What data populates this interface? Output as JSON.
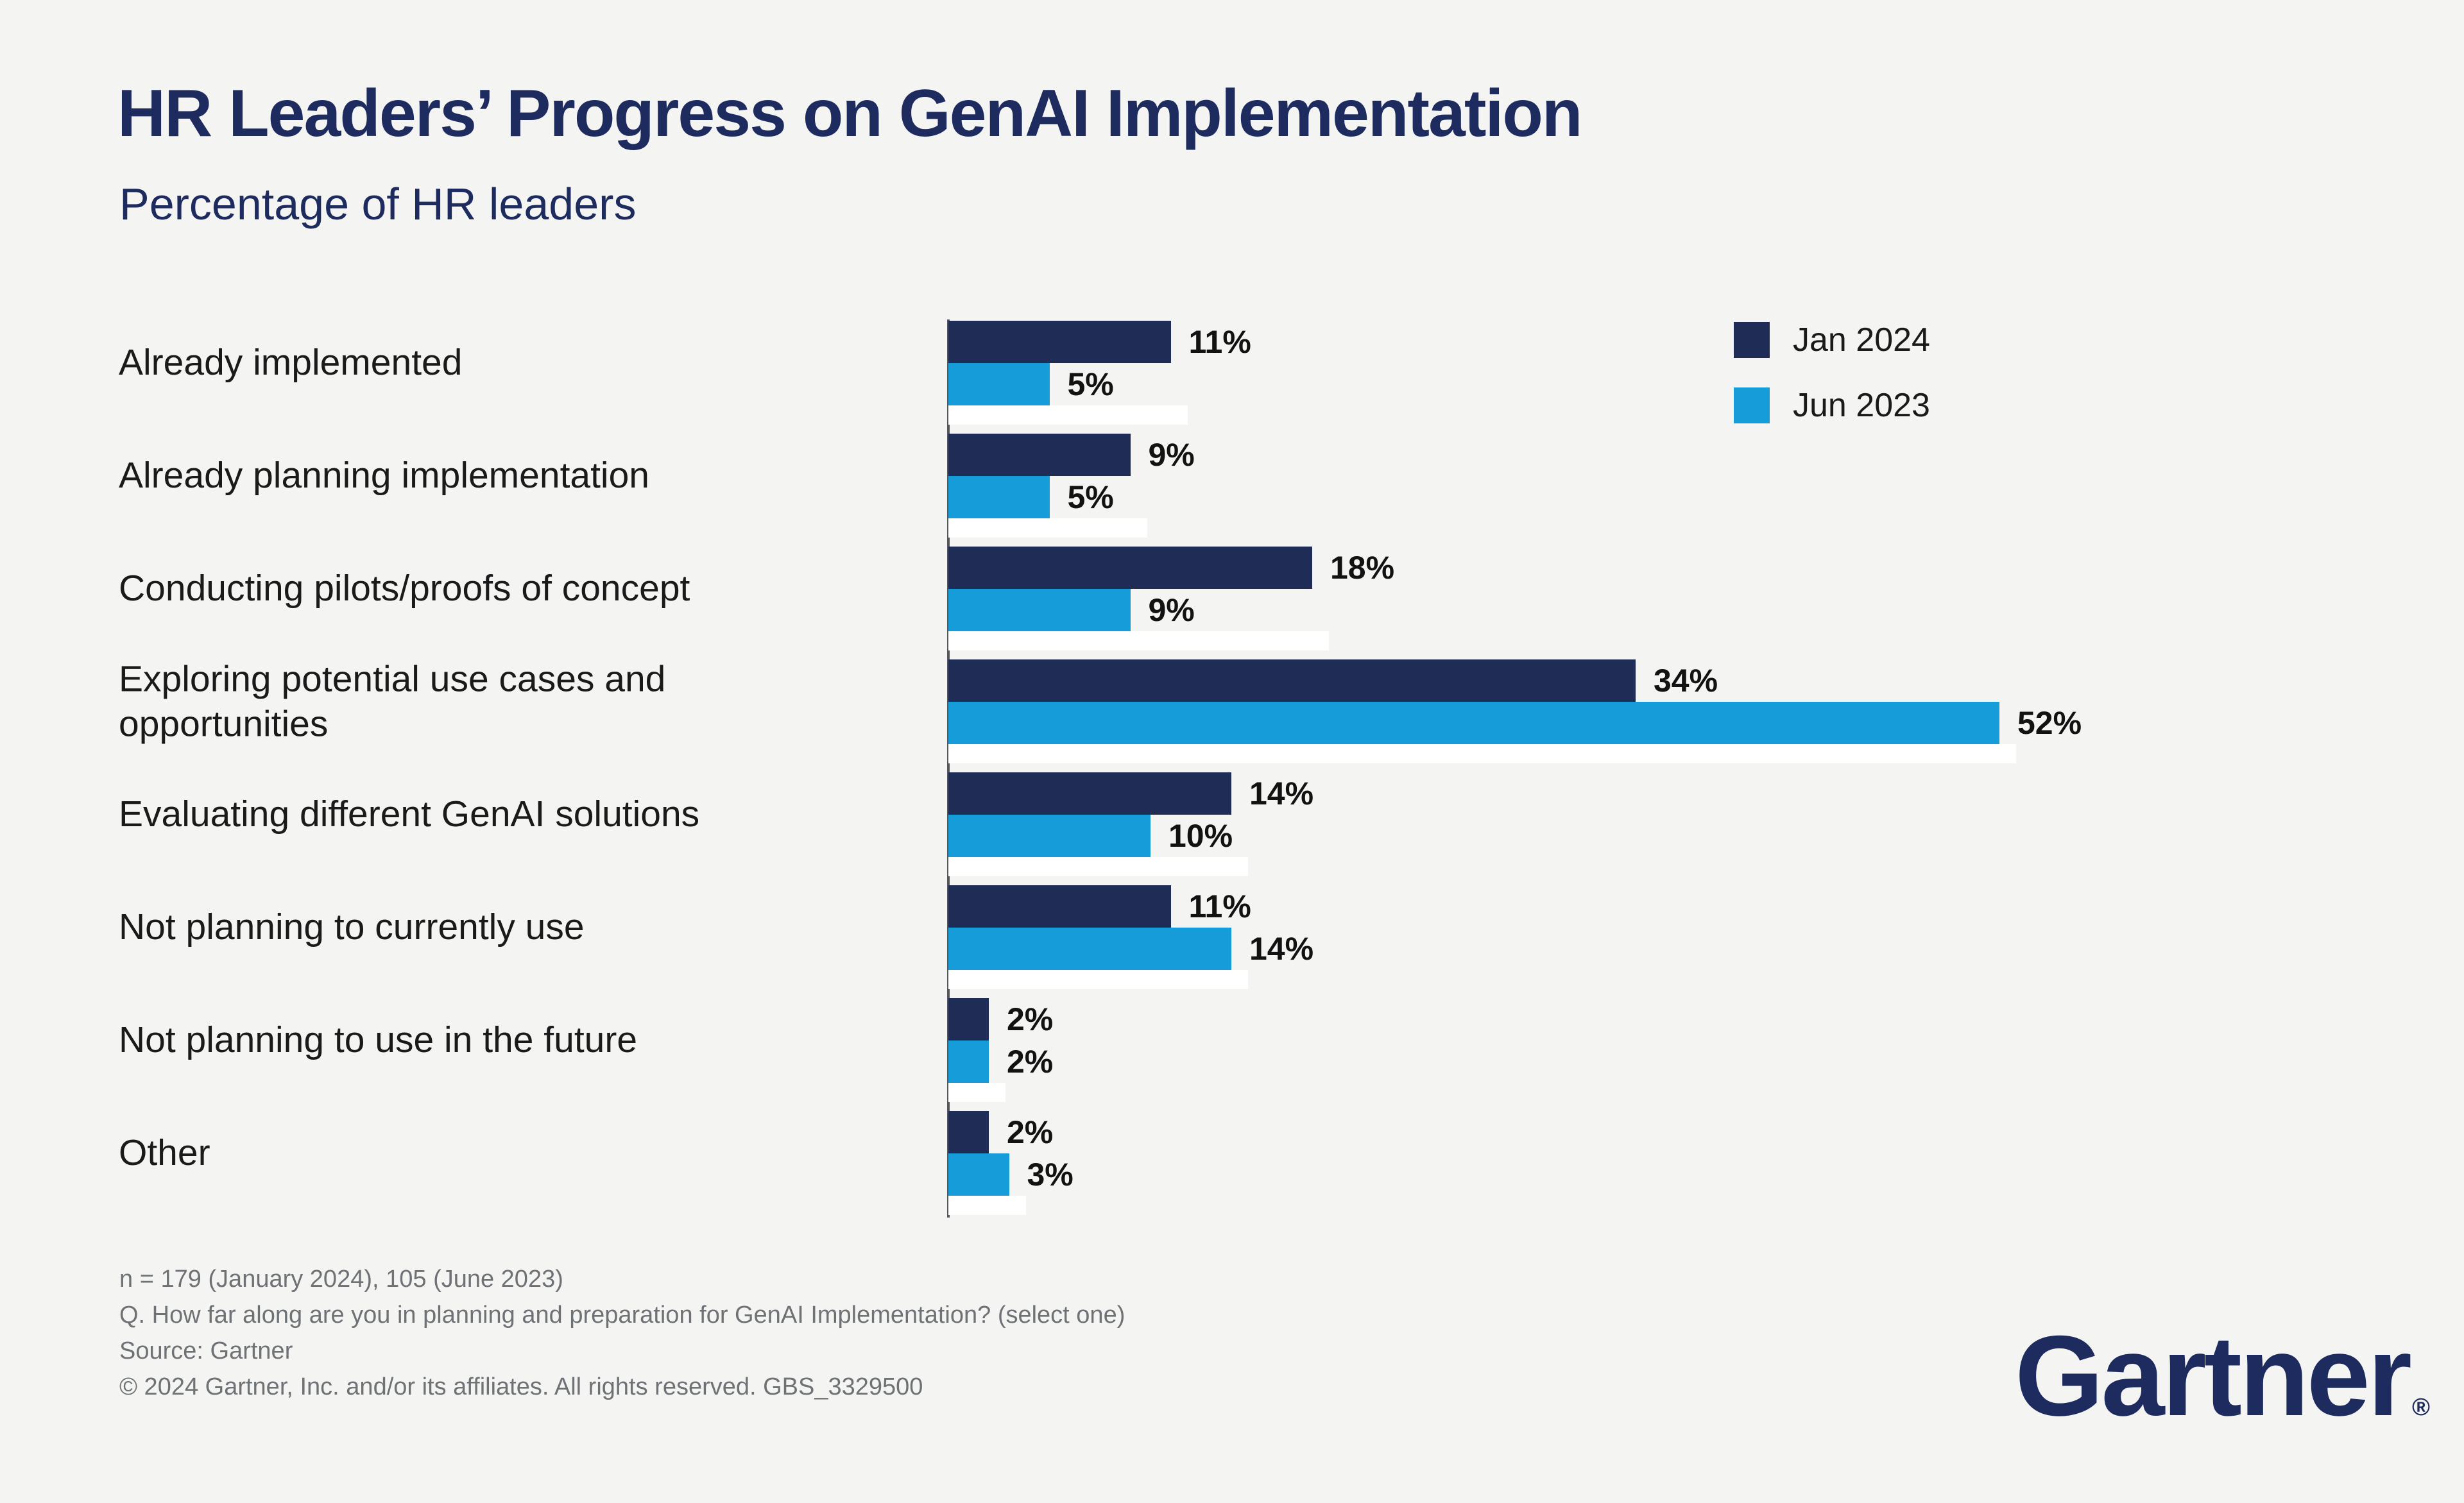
{
  "header": {
    "title": "HR Leaders’ Progress on GenAI Implementation",
    "subtitle": "Percentage of HR leaders"
  },
  "chart_data": {
    "type": "bar",
    "orientation": "horizontal",
    "title": "HR Leaders’ Progress on GenAI Implementation",
    "subtitle": "Percentage of HR leaders",
    "value_suffix": "%",
    "axis_range": [
      0,
      60
    ],
    "gridlines": false,
    "legend_position": "top-right",
    "categories": [
      "Already implemented",
      "Already planning implementation",
      "Conducting pilots/proofs of concept",
      "Exploring potential use cases and opportunities",
      "Evaluating different GenAI solutions",
      "Not planning to currently use",
      "Not planning to use in the future",
      "Other"
    ],
    "series": [
      {
        "name": "Jan 2024",
        "color": "#1f2c56",
        "values": [
          11,
          9,
          18,
          34,
          14,
          11,
          2,
          2
        ]
      },
      {
        "name": "Jun 2023",
        "color": "#169dd9",
        "values": [
          5,
          5,
          9,
          52,
          10,
          14,
          2,
          3
        ]
      }
    ]
  },
  "colors": {
    "background": "#f4f4f2",
    "title_navy": "#1d2b5f",
    "bar_navy": "#1f2c56",
    "bar_blue": "#169dd9",
    "footer_gray": "#6e7275",
    "axis_gray": "#55565a"
  },
  "footer": {
    "lines": [
      "n = 179 (January 2024), 105 (June 2023)",
      "Q. How far along are you in planning and preparation for GenAI Implementation? (select one)",
      "Source: Gartner",
      "© 2024 Gartner, Inc. and/or its affiliates. All rights reserved. GBS_3329500"
    ]
  },
  "logo": {
    "text": "Gartner",
    "registered_mark": "®"
  }
}
